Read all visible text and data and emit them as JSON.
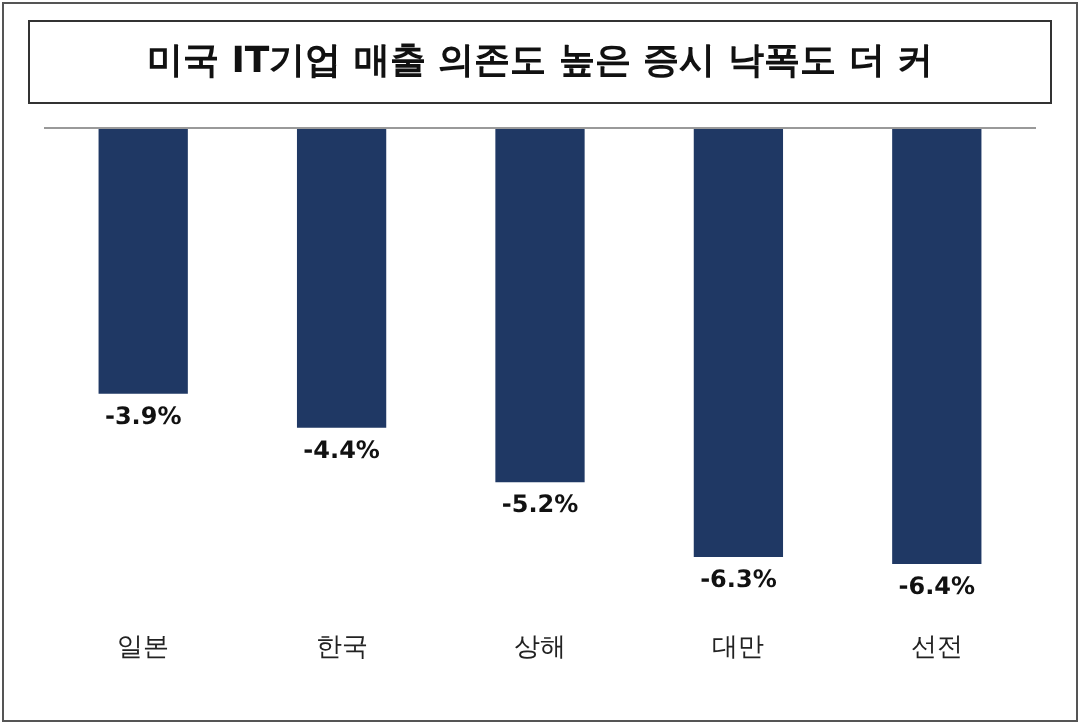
{
  "chart_data": {
    "type": "bar",
    "title": "미국 IT기업 매출 의존도 높은 증시 낙폭도 더 커",
    "categories": [
      "일본",
      "한국",
      "상해",
      "대만",
      "선전"
    ],
    "values": [
      -3.9,
      -4.4,
      -5.2,
      -6.3,
      -6.4
    ],
    "value_labels": [
      "-3.9%",
      "-4.4%",
      "-5.2%",
      "-6.3%",
      "-6.4%"
    ],
    "color": "#1f3864",
    "grid": false,
    "legend": false
  }
}
